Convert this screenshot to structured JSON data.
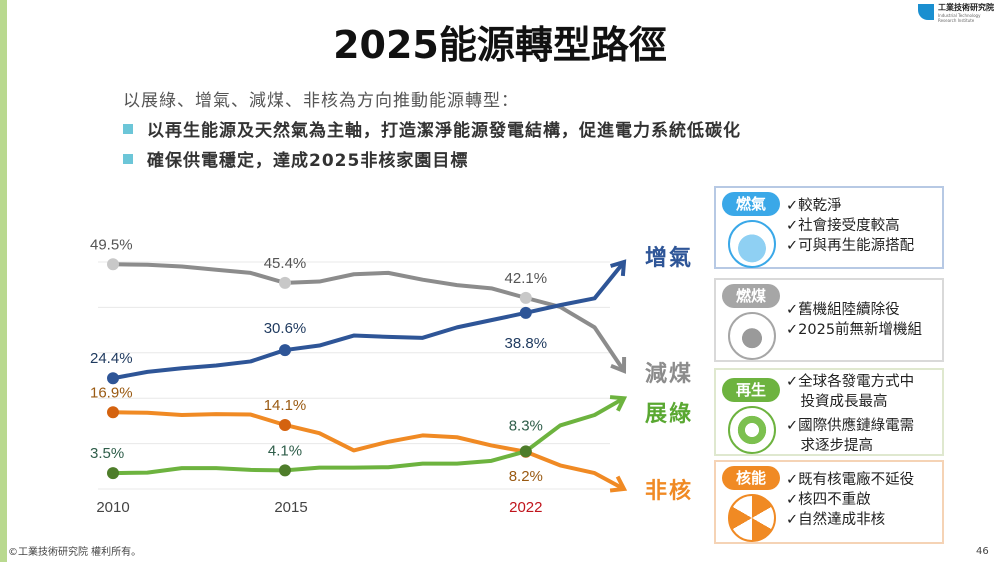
{
  "title": "2025能源轉型路徑",
  "logo": {
    "name_zh": "工業技術研究院",
    "name_en": "Industrial Technology Research Institute"
  },
  "intro": "以展綠、增氣、減煤、非核為方向推動能源轉型：",
  "bullets": [
    "以再生能源及天然氣為主軸，打造潔淨能源發電結構，促進電力系統低碳化",
    "確保供電穩定，達成2025非核家園目標"
  ],
  "colors": {
    "gas": "#2e5597",
    "coal": "#8c8c8c",
    "green": "#6db33f",
    "nuclear": "#f08a24"
  },
  "chart_data": {
    "type": "line",
    "x": [
      2010,
      2011,
      2012,
      2013,
      2014,
      2015,
      2016,
      2017,
      2018,
      2019,
      2020,
      2021,
      2022,
      2023,
      2024
    ],
    "xticks": [
      "2010",
      "2015",
      "2022"
    ],
    "ylim": [
      0,
      50
    ],
    "grid": true,
    "series": [
      {
        "name": "增氣",
        "key": "gas",
        "values": [
          24.4,
          25.8,
          26.6,
          27.2,
          28.1,
          30.6,
          31.6,
          33.8,
          33.5,
          33.3,
          35.6,
          37.2,
          38.8,
          40.5,
          42.0
        ],
        "labels": {
          "2010": "24.4%",
          "2015": "30.6%",
          "2022": "38.8%"
        }
      },
      {
        "name": "減煤",
        "key": "coal",
        "values": [
          49.5,
          49.4,
          49.0,
          48.3,
          47.6,
          45.4,
          45.7,
          47.3,
          47.6,
          46.1,
          44.9,
          44.2,
          42.1,
          40.1,
          35.6
        ],
        "labels": {
          "2010": "49.5%",
          "2015": "45.4%",
          "2022": "42.1%"
        }
      },
      {
        "name": "展綠",
        "key": "green",
        "values": [
          3.5,
          3.6,
          4.6,
          4.6,
          4.2,
          4.1,
          4.7,
          4.7,
          4.8,
          5.6,
          5.6,
          6.2,
          8.3,
          14.0,
          16.3
        ],
        "labels": {
          "2010": "3.5%",
          "2015": "4.1%",
          "2022": "8.3%"
        }
      },
      {
        "name": "非核",
        "key": "nuclear",
        "values": [
          16.9,
          16.8,
          16.3,
          16.5,
          16.4,
          14.1,
          12.3,
          8.5,
          10.4,
          11.8,
          11.4,
          9.6,
          8.2,
          5.2,
          3.5
        ],
        "labels": {
          "2010": "16.9%",
          "2015": "14.1%",
          "2022": "8.2%"
        }
      }
    ]
  },
  "panels": [
    {
      "tag": "燃氣",
      "icon": "lng-ship-icon",
      "color": "#3aa8e8",
      "items": [
        "✓較乾淨",
        "✓社會接受度較高",
        "✓可與再生能源搭配"
      ]
    },
    {
      "tag": "燃煤",
      "icon": "coal-cart-icon",
      "color": "#a6a6a6",
      "items": [
        "✓舊機組陸續除役",
        "✓2025前無新增機組"
      ]
    },
    {
      "tag": "再生",
      "icon": "recycle-icon",
      "color": "#6db33f",
      "items": [
        "✓全球各發電方式中",
        "　投資成長最高",
        "✓國際供應鏈綠電需",
        "　求逐步提高"
      ]
    },
    {
      "tag": "核能",
      "icon": "radiation-icon",
      "color": "#f08a24",
      "items": [
        "✓既有核電廠不延役",
        "✓核四不重啟",
        "✓自然達成非核"
      ]
    }
  ],
  "footer": "©工業技術研究院 權利所有。",
  "page_number": "46"
}
